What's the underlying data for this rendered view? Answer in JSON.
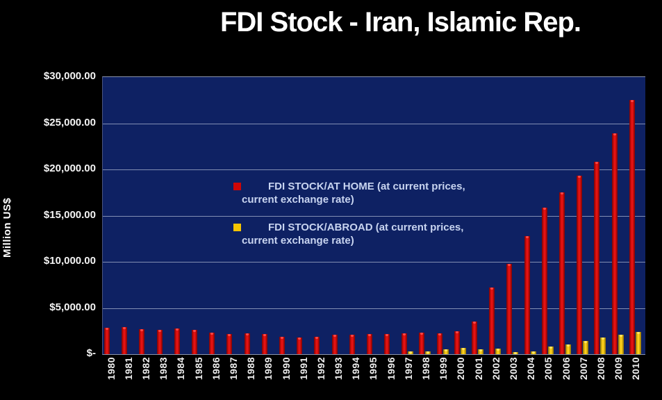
{
  "header": {
    "title": "FDI Stock - Iran, Islamic Rep."
  },
  "colors": {
    "page_background": "#000000",
    "plot_background": "#0e2163",
    "gridline": "#aab4cd",
    "at_home_bar": "#cf0606",
    "abroad_bar": "#f5c400",
    "legend_text": "#c8d4f0",
    "axis_text": "#f4f4f4"
  },
  "chart_data": {
    "type": "bar",
    "title": "FDI Stock - Iran, Islamic Rep.",
    "xlabel": "",
    "ylabel": "Million US$",
    "ylim": [
      0,
      30000
    ],
    "ytick_step": 5000,
    "ytick_labels_bottom_to_top": [
      "$-",
      "$5,000.00",
      "$10,000.00",
      "$15,000.00",
      "$20,000.00",
      "$25,000.00",
      "$30,000.00"
    ],
    "grid": true,
    "legend_position": "inside-center-left",
    "categories": [
      "1980",
      "1981",
      "1982",
      "1983",
      "1984",
      "1985",
      "1986",
      "1987",
      "1988",
      "1989",
      "1990",
      "1991",
      "1992",
      "1993",
      "1994",
      "1995",
      "1996",
      "1997",
      "1998",
      "1999",
      "2000",
      "2001",
      "2002",
      "2003",
      "2004",
      "2005",
      "2006",
      "2007",
      "2008",
      "2009",
      "2010"
    ],
    "series": [
      {
        "name": "FDI STOCK/AT HOME (at current prices, current exchange rate)",
        "color": "#cf0606",
        "values": [
          2850,
          2900,
          2700,
          2600,
          2750,
          2650,
          2350,
          2150,
          2250,
          2200,
          1850,
          1800,
          1900,
          2100,
          2070,
          2150,
          2170,
          2220,
          2320,
          2270,
          2470,
          3500,
          7200,
          9800,
          12800,
          15900,
          17500,
          19300,
          20800,
          23900,
          27500
        ]
      },
      {
        "name": "FDI STOCK/ABROAD (at current prices, current exchange rate)",
        "color": "#f5c400",
        "values": [
          0,
          0,
          0,
          0,
          0,
          0,
          0,
          0,
          0,
          0,
          0,
          0,
          0,
          0,
          0,
          0,
          0,
          300,
          280,
          500,
          650,
          550,
          600,
          250,
          300,
          800,
          1080,
          1400,
          1780,
          2100,
          2430
        ]
      }
    ],
    "legend": [
      {
        "line1": "FDI STOCK/AT HOME (at current prices,",
        "line2": "current exchange rate)",
        "marker_color": "#cf0606"
      },
      {
        "line1": "FDI STOCK/ABROAD (at current prices,",
        "line2": "current exchange rate)",
        "marker_color": "#f5c400"
      }
    ]
  }
}
